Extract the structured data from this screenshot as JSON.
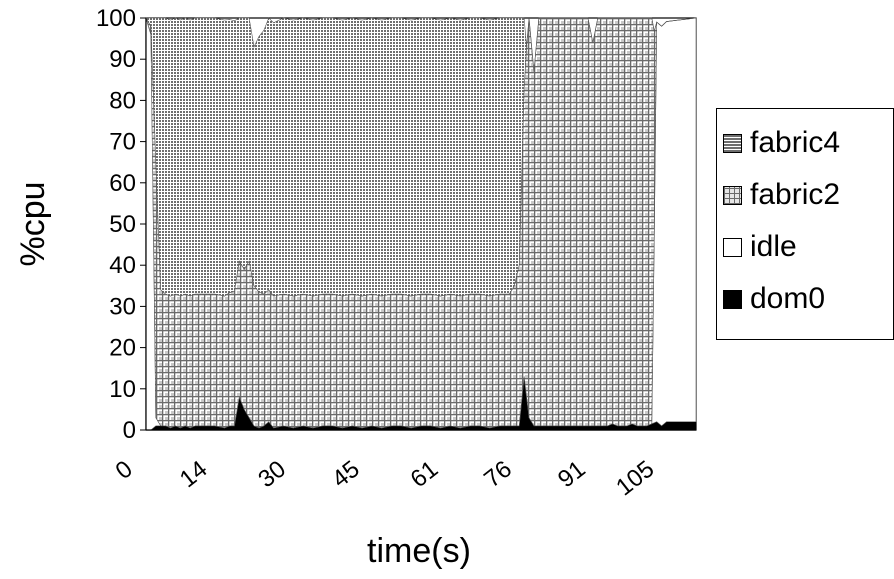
{
  "chart_data": {
    "type": "area",
    "stacked": true,
    "xlabel": "time(s)",
    "ylabel": "%cpu",
    "ylim": [
      0,
      100
    ],
    "xlim": [
      0,
      112
    ],
    "yticks": [
      0,
      10,
      20,
      30,
      40,
      50,
      60,
      70,
      80,
      90,
      100
    ],
    "xtick_labels": [
      "0",
      "14",
      "30",
      "45",
      "61",
      "76",
      "91",
      "105"
    ],
    "xtick_values": [
      0,
      14,
      30,
      45,
      61,
      76,
      91,
      105
    ],
    "legend_position": "right",
    "series": [
      {
        "name": "fabric4",
        "key": "fabric4",
        "color": "#8c8c8c",
        "points": [
          [
            0,
            0
          ],
          [
            1,
            2
          ],
          [
            2,
            35
          ],
          [
            3,
            66
          ],
          [
            4,
            67
          ],
          [
            5,
            67
          ],
          [
            8,
            67
          ],
          [
            12,
            67
          ],
          [
            16,
            67
          ],
          [
            19,
            65
          ],
          [
            20,
            64
          ],
          [
            21,
            61
          ],
          [
            22,
            58
          ],
          [
            23,
            62
          ],
          [
            24,
            64
          ],
          [
            25,
            66
          ],
          [
            28,
            67
          ],
          [
            35,
            67
          ],
          [
            45,
            67
          ],
          [
            55,
            67
          ],
          [
            65,
            67
          ],
          [
            70,
            67
          ],
          [
            74,
            67
          ],
          [
            75,
            65
          ],
          [
            76,
            60
          ],
          [
            77,
            30
          ],
          [
            77.5,
            0
          ],
          [
            112,
            0
          ]
        ]
      },
      {
        "name": "fabric2",
        "key": "fabric2",
        "color": "#b4b4b4",
        "points": [
          [
            0,
            0
          ],
          [
            1,
            2
          ],
          [
            2,
            62
          ],
          [
            3,
            33
          ],
          [
            4,
            32
          ],
          [
            8,
            32
          ],
          [
            12,
            32
          ],
          [
            16,
            32
          ],
          [
            19,
            33
          ],
          [
            20,
            34
          ],
          [
            21,
            38
          ],
          [
            22,
            34
          ],
          [
            23,
            33
          ],
          [
            24,
            32
          ],
          [
            28,
            32
          ],
          [
            35,
            32
          ],
          [
            45,
            32
          ],
          [
            55,
            32
          ],
          [
            65,
            32
          ],
          [
            70,
            32
          ],
          [
            74,
            32
          ],
          [
            75,
            34
          ],
          [
            76,
            39
          ],
          [
            77,
            70
          ],
          [
            78,
            100
          ],
          [
            79,
            86
          ],
          [
            80,
            99
          ],
          [
            85,
            99
          ],
          [
            90,
            99
          ],
          [
            91,
            93
          ],
          [
            92,
            99
          ],
          [
            95,
            99
          ],
          [
            98,
            99
          ],
          [
            99,
            99
          ],
          [
            100,
            99
          ],
          [
            102,
            99
          ],
          [
            103,
            99
          ],
          [
            103.5,
            50
          ],
          [
            104,
            0
          ],
          [
            112,
            0
          ]
        ]
      },
      {
        "name": "idle",
        "key": "idle",
        "color": "#ffffff",
        "points": [
          [
            0,
            100
          ],
          [
            1,
            96
          ],
          [
            2,
            2
          ],
          [
            3,
            0
          ],
          [
            78,
            0
          ],
          [
            79,
            0
          ],
          [
            103,
            0
          ],
          [
            103.5,
            45
          ],
          [
            104,
            97
          ],
          [
            105,
            97
          ],
          [
            112,
            98
          ]
        ]
      },
      {
        "name": "dom0",
        "key": "dom0",
        "color": "#000000",
        "points": [
          [
            0,
            0
          ],
          [
            1,
            0
          ],
          [
            2,
            1
          ],
          [
            3,
            1
          ],
          [
            4,
            1
          ],
          [
            5,
            0.5
          ],
          [
            6,
            1
          ],
          [
            7,
            0.5
          ],
          [
            8,
            1
          ],
          [
            9,
            0.5
          ],
          [
            10,
            1
          ],
          [
            12,
            1
          ],
          [
            14,
            1
          ],
          [
            16,
            0.5
          ],
          [
            17,
            1
          ],
          [
            18,
            1
          ],
          [
            19,
            8
          ],
          [
            20,
            5
          ],
          [
            21,
            3
          ],
          [
            22,
            1
          ],
          [
            23,
            0.5
          ],
          [
            24,
            1
          ],
          [
            25,
            2
          ],
          [
            26,
            0.5
          ],
          [
            28,
            1
          ],
          [
            30,
            0.5
          ],
          [
            32,
            1
          ],
          [
            34,
            0.5
          ],
          [
            36,
            1
          ],
          [
            38,
            1
          ],
          [
            40,
            0.5
          ],
          [
            42,
            1
          ],
          [
            44,
            0.5
          ],
          [
            46,
            1
          ],
          [
            48,
            0.5
          ],
          [
            50,
            1
          ],
          [
            52,
            1
          ],
          [
            54,
            0.5
          ],
          [
            56,
            1
          ],
          [
            58,
            1
          ],
          [
            60,
            0.5
          ],
          [
            62,
            1
          ],
          [
            64,
            0.5
          ],
          [
            66,
            1
          ],
          [
            68,
            1
          ],
          [
            70,
            0.5
          ],
          [
            72,
            1
          ],
          [
            74,
            1
          ],
          [
            75,
            1
          ],
          [
            76,
            1
          ],
          [
            77,
            13
          ],
          [
            78,
            3
          ],
          [
            79,
            1
          ],
          [
            80,
            1
          ],
          [
            82,
            1
          ],
          [
            84,
            1
          ],
          [
            86,
            1
          ],
          [
            88,
            1
          ],
          [
            90,
            1
          ],
          [
            92,
            1
          ],
          [
            94,
            1
          ],
          [
            95,
            1.5
          ],
          [
            96,
            1
          ],
          [
            98,
            1
          ],
          [
            99,
            1.5
          ],
          [
            100,
            1
          ],
          [
            102,
            1
          ],
          [
            103,
            1.5
          ],
          [
            104,
            2
          ],
          [
            105,
            1
          ],
          [
            106,
            2
          ],
          [
            107,
            2
          ],
          [
            108,
            2
          ],
          [
            110,
            2
          ],
          [
            112,
            2
          ]
        ]
      }
    ]
  }
}
